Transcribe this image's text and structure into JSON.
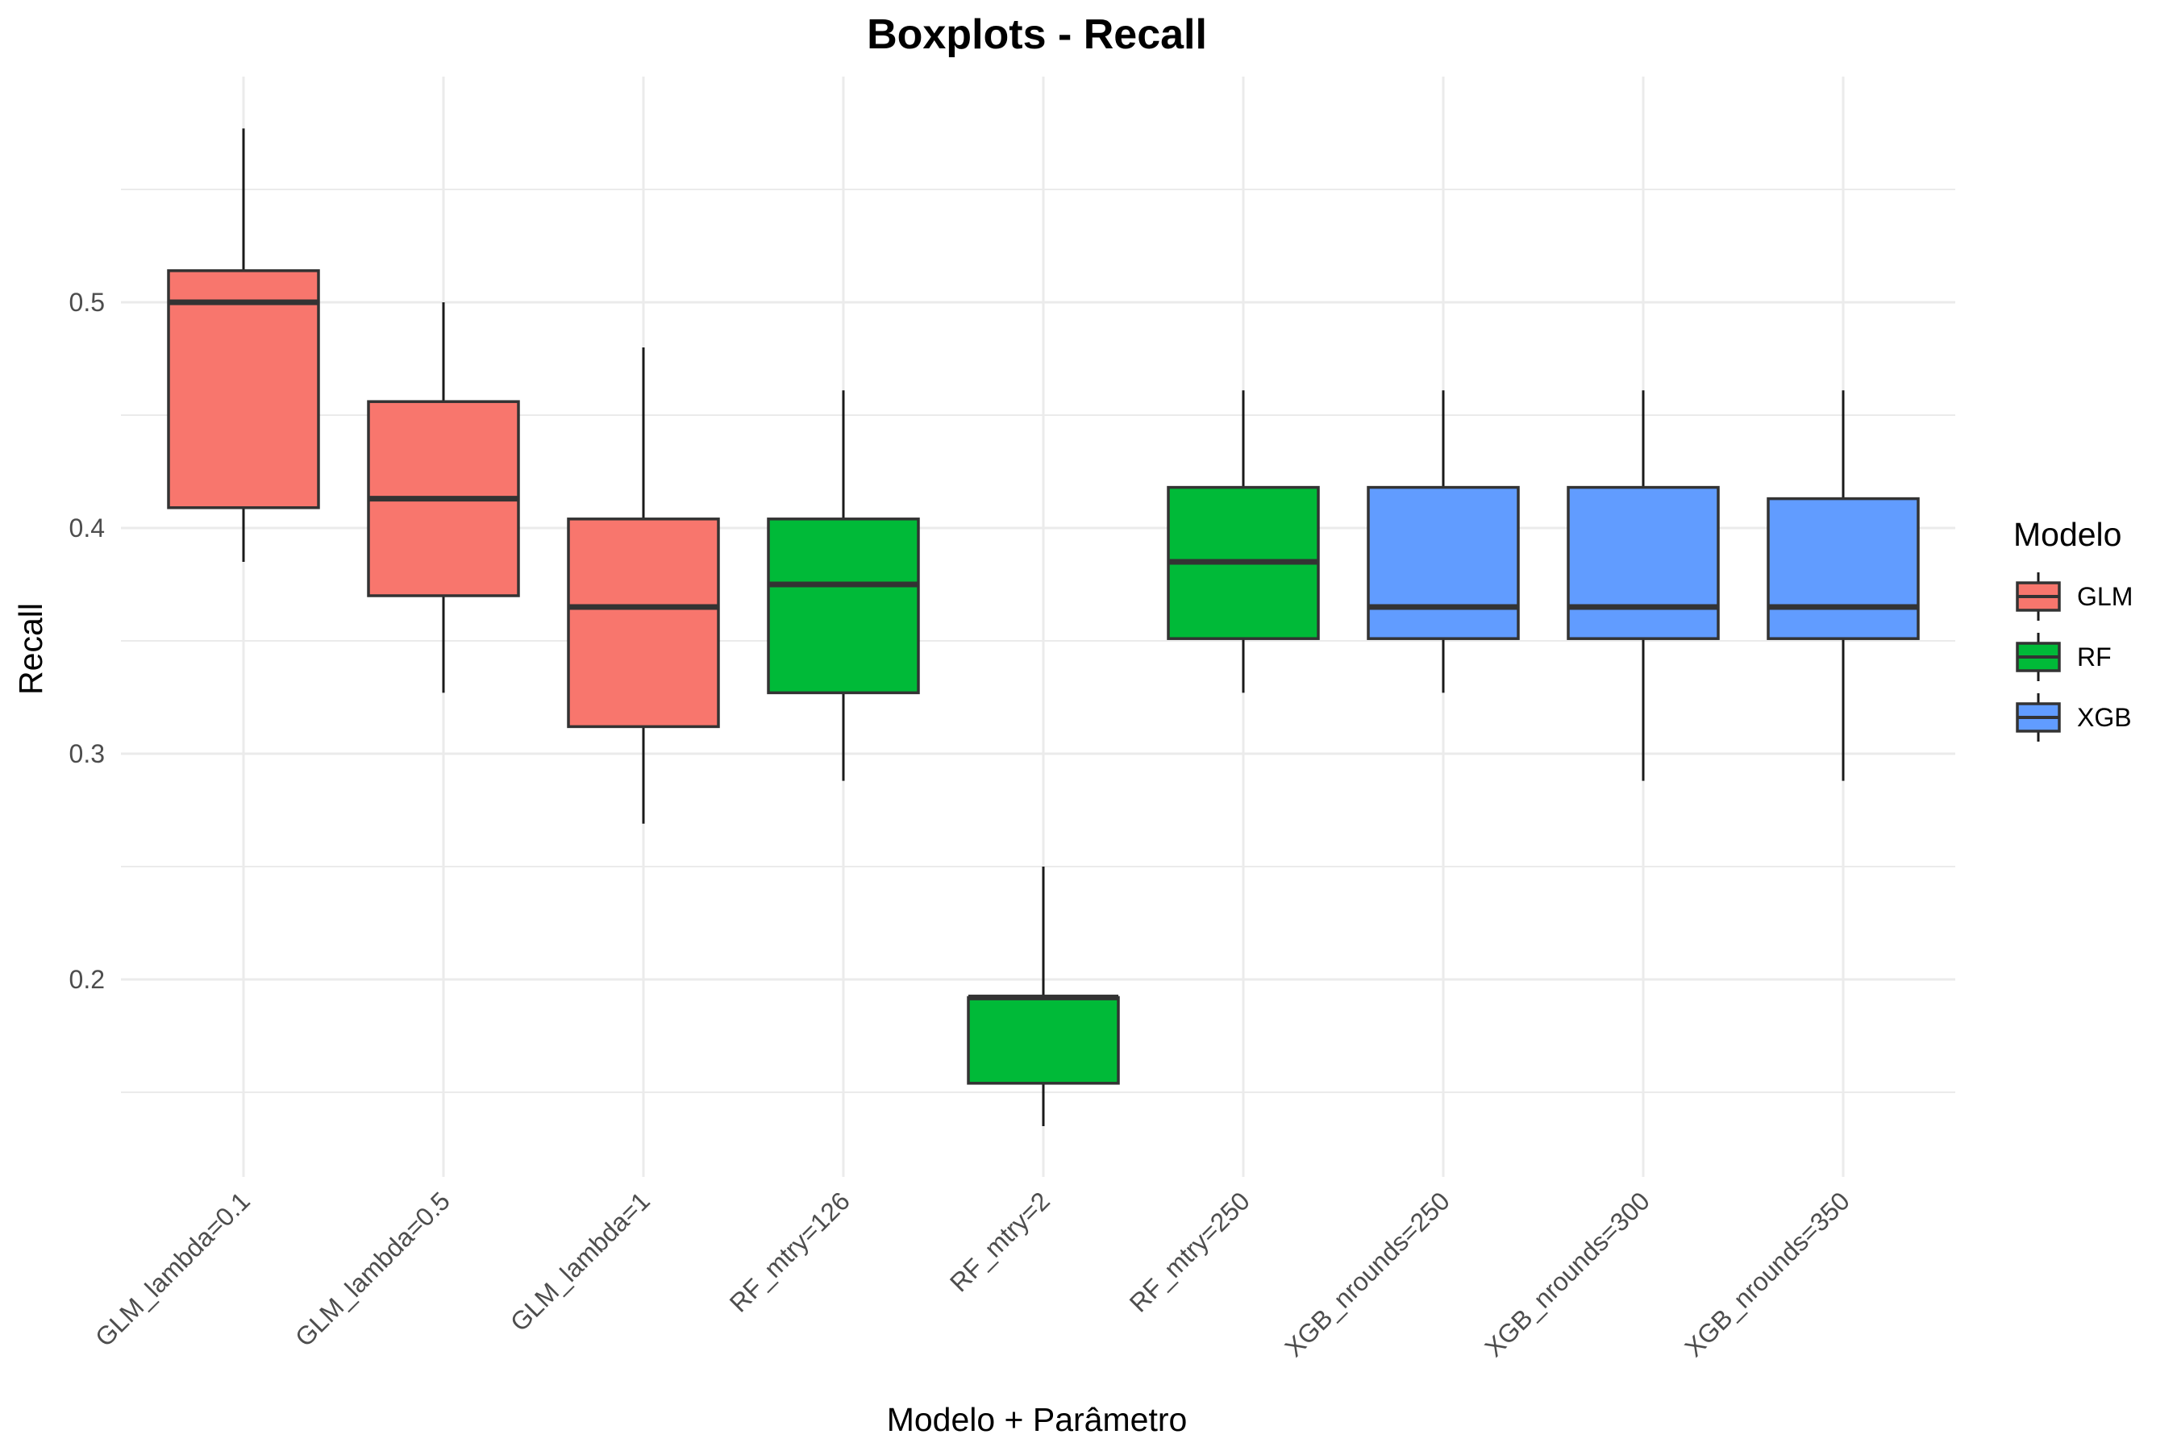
{
  "chart_data": {
    "type": "boxplot",
    "title": "Boxplots - Recall",
    "xlabel": "Modelo + Parâmetro",
    "ylabel": "Recall",
    "ylim": [
      0.113,
      0.614
    ],
    "y_major_ticks": [
      0.2,
      0.3,
      0.4,
      0.5
    ],
    "y_tick_labels": [
      "0.2",
      "0.3",
      "0.4",
      "0.5"
    ],
    "y_minor_ticks": [
      0.15,
      0.25,
      0.35,
      0.45,
      0.55
    ],
    "grid": true,
    "legend": {
      "title": "Modelo",
      "position": "right",
      "entries": [
        {
          "label": "GLM",
          "color": "#F8766D"
        },
        {
          "label": "RF",
          "color": "#00BA38"
        },
        {
          "label": "XGB",
          "color": "#619CFF"
        }
      ]
    },
    "categories": [
      "GLM_lambda=0.1",
      "GLM_lambda=0.5",
      "GLM_lambda=1",
      "RF_mtry=126",
      "RF_mtry=2",
      "RF_mtry=250",
      "XGB_nrounds=250",
      "XGB_nrounds=300",
      "XGB_nrounds=350"
    ],
    "boxes": [
      {
        "category": "GLM_lambda=0.1",
        "group": "GLM",
        "min": 0.385,
        "q1": 0.409,
        "median": 0.5,
        "q3": 0.514,
        "max": 0.577
      },
      {
        "category": "GLM_lambda=0.5",
        "group": "GLM",
        "min": 0.327,
        "q1": 0.37,
        "median": 0.413,
        "q3": 0.456,
        "max": 0.5
      },
      {
        "category": "GLM_lambda=1",
        "group": "GLM",
        "min": 0.269,
        "q1": 0.312,
        "median": 0.365,
        "q3": 0.404,
        "max": 0.48
      },
      {
        "category": "RF_mtry=126",
        "group": "RF",
        "min": 0.288,
        "q1": 0.327,
        "median": 0.375,
        "q3": 0.404,
        "max": 0.461
      },
      {
        "category": "RF_mtry=2",
        "group": "RF",
        "min": 0.135,
        "q1": 0.154,
        "median": 0.192,
        "q3": 0.192,
        "max": 0.25
      },
      {
        "category": "RF_mtry=250",
        "group": "RF",
        "min": 0.327,
        "q1": 0.351,
        "median": 0.385,
        "q3": 0.418,
        "max": 0.461
      },
      {
        "category": "XGB_nrounds=250",
        "group": "XGB",
        "min": 0.327,
        "q1": 0.351,
        "median": 0.365,
        "q3": 0.418,
        "max": 0.461
      },
      {
        "category": "XGB_nrounds=300",
        "group": "XGB",
        "min": 0.288,
        "q1": 0.351,
        "median": 0.365,
        "q3": 0.418,
        "max": 0.461
      },
      {
        "category": "XGB_nrounds=350",
        "group": "XGB",
        "min": 0.288,
        "q1": 0.351,
        "median": 0.365,
        "q3": 0.413,
        "max": 0.461
      }
    ]
  }
}
